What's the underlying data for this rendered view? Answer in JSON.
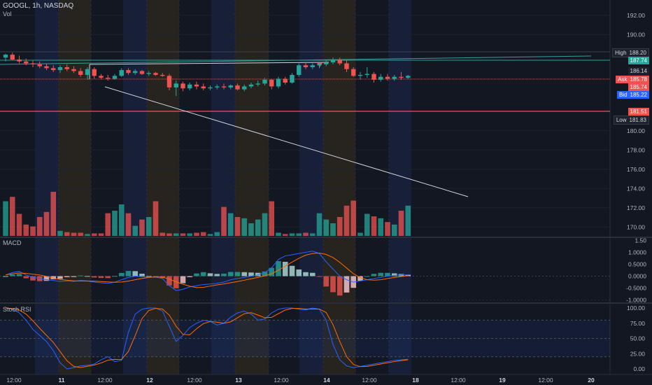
{
  "header": {
    "symbol_line": "GOOGL, 1h, NASDAQ",
    "volume_label": "Vol"
  },
  "panes": {
    "macd_label": "MACD",
    "stoch_label": "Stoch RSI"
  },
  "price_axis": {
    "ticks": [
      "192.00",
      "190.00",
      "186.14",
      "180.00",
      "178.00",
      "176.00",
      "174.00",
      "172.00",
      "170.00"
    ],
    "tick_values": [
      192,
      190,
      186.14,
      180,
      178,
      176,
      174,
      172,
      170
    ]
  },
  "price_tags": {
    "high": {
      "label": "High",
      "value": "188.20"
    },
    "last": {
      "value": "187.74"
    },
    "mid": {
      "value": "186.14"
    },
    "ask": {
      "label": "Ask",
      "value": "185.78"
    },
    "ask2": {
      "value": "185.74"
    },
    "bid": {
      "label": "Bid",
      "value": "185.22"
    },
    "red_line": {
      "value": "181.51"
    },
    "low": {
      "label": "Low",
      "value": "181.83"
    }
  },
  "macd_axis": [
    "1.50",
    "1.0000",
    "0.5000",
    "0.0000",
    "-0.5000",
    "-1.0000"
  ],
  "stoch_axis": [
    "100.00",
    "75.00",
    "50.00",
    "25.00",
    "0.00"
  ],
  "time_axis": [
    "12:00",
    "11",
    "12:00",
    "12",
    "12:00",
    "13",
    "12:00",
    "14",
    "12:00",
    "18",
    "12:00",
    "19",
    "12:00",
    "20"
  ],
  "colors": {
    "bg": "#131722",
    "up": "#26a69a",
    "down": "#ef5350",
    "macd_line": "#2962ff",
    "signal_line": "#ff6d00",
    "session_orange": "#2a2620",
    "session_blue": "#1a2440"
  },
  "chart_data": {
    "type": "candlestick",
    "price_range": [
      169,
      193
    ],
    "candles": [
      [
        187.6,
        188.0,
        187.2,
        187.9
      ],
      [
        187.9,
        188.1,
        187.3,
        187.4
      ],
      [
        187.4,
        187.8,
        187.0,
        187.2
      ],
      [
        187.2,
        187.5,
        186.8,
        187.0
      ],
      [
        187.0,
        187.3,
        186.6,
        186.9
      ],
      [
        186.9,
        187.2,
        186.5,
        186.7
      ],
      [
        186.7,
        187.0,
        186.3,
        186.5
      ],
      [
        186.5,
        186.8,
        186.1,
        186.3
      ],
      [
        186.3,
        186.8,
        186.0,
        186.6
      ],
      [
        186.6,
        186.9,
        186.2,
        186.4
      ],
      [
        186.4,
        186.7,
        186.0,
        186.2
      ],
      [
        186.2,
        186.5,
        185.6,
        185.8
      ],
      [
        185.8,
        186.6,
        185.3,
        186.4
      ],
      [
        186.4,
        186.6,
        185.4,
        185.7
      ],
      [
        185.7,
        185.9,
        185.3,
        185.5
      ],
      [
        185.5,
        185.8,
        185.2,
        185.4
      ],
      [
        185.4,
        185.9,
        185.3,
        185.7
      ],
      [
        185.7,
        186.5,
        185.6,
        186.3
      ],
      [
        186.3,
        186.5,
        185.8,
        186.0
      ],
      [
        186.0,
        186.4,
        185.8,
        186.2
      ],
      [
        186.2,
        186.3,
        185.8,
        185.9
      ],
      [
        185.9,
        186.2,
        185.7,
        186.0
      ],
      [
        186.0,
        186.1,
        185.7,
        185.8
      ],
      [
        185.8,
        186.0,
        185.6,
        185.7
      ],
      [
        185.7,
        185.9,
        184.2,
        184.5
      ],
      [
        184.5,
        185.2,
        183.6,
        184.9
      ],
      [
        184.9,
        185.1,
        184.1,
        184.4
      ],
      [
        184.4,
        185.0,
        184.2,
        184.8
      ],
      [
        184.8,
        185.1,
        184.3,
        184.6
      ],
      [
        184.6,
        184.9,
        184.2,
        184.4
      ],
      [
        184.4,
        184.7,
        184.2,
        184.5
      ],
      [
        184.5,
        184.8,
        184.3,
        184.6
      ],
      [
        184.6,
        184.9,
        184.3,
        184.5
      ],
      [
        184.5,
        184.8,
        184.3,
        184.7
      ],
      [
        184.7,
        184.9,
        184.2,
        184.3
      ],
      [
        184.3,
        184.8,
        184.1,
        184.6
      ],
      [
        184.6,
        185.0,
        184.4,
        184.8
      ],
      [
        184.8,
        185.2,
        184.6,
        184.9
      ],
      [
        184.9,
        185.5,
        184.7,
        185.3
      ],
      [
        185.3,
        185.4,
        184.3,
        184.6
      ],
      [
        184.6,
        185.6,
        184.4,
        185.4
      ],
      [
        185.4,
        185.6,
        184.8,
        185.0
      ],
      [
        185.0,
        186.0,
        184.9,
        185.8
      ],
      [
        185.8,
        187.0,
        185.6,
        186.8
      ],
      [
        186.8,
        187.1,
        186.4,
        186.6
      ],
      [
        186.6,
        187.0,
        186.4,
        186.8
      ],
      [
        186.8,
        187.1,
        186.5,
        186.9
      ],
      [
        186.9,
        187.3,
        186.7,
        187.1
      ],
      [
        187.1,
        187.6,
        186.9,
        187.4
      ],
      [
        187.4,
        187.6,
        186.8,
        187.0
      ],
      [
        187.0,
        187.4,
        186.1,
        186.4
      ],
      [
        186.4,
        186.6,
        185.6,
        185.7
      ],
      [
        185.7,
        186.1,
        185.3,
        185.8
      ],
      [
        185.8,
        186.6,
        185.5,
        185.9
      ],
      [
        185.9,
        186.1,
        185.0,
        185.3
      ],
      [
        185.3,
        185.9,
        185.1,
        185.6
      ],
      [
        185.6,
        185.9,
        185.2,
        185.4
      ],
      [
        185.4,
        185.8,
        185.2,
        185.6
      ],
      [
        185.6,
        186.1,
        185.3,
        185.5
      ],
      [
        185.5,
        185.8,
        185.4,
        185.7
      ]
    ],
    "volume": [
      0.55,
      0.62,
      0.35,
      0.18,
      0.15,
      0.3,
      0.38,
      0.7,
      0.08,
      0.06,
      0.05,
      0.05,
      0.03,
      0.04,
      0.04,
      0.36,
      0.4,
      0.5,
      0.36,
      0.16,
      0.26,
      0.3,
      0.55,
      0.05,
      0.04,
      0.04,
      0.04,
      0.04,
      0.05,
      0.06,
      0.03,
      0.06,
      0.46,
      0.36,
      0.3,
      0.28,
      0.2,
      0.26,
      0.36,
      0.55,
      0.05,
      0.03,
      0.04,
      0.04,
      0.05,
      0.04,
      0.36,
      0.26,
      0.2,
      0.3,
      0.48,
      0.56,
      0.05,
      0.35,
      0.31,
      0.28,
      0.22,
      0.18,
      0.4,
      0.48
    ]
  }
}
